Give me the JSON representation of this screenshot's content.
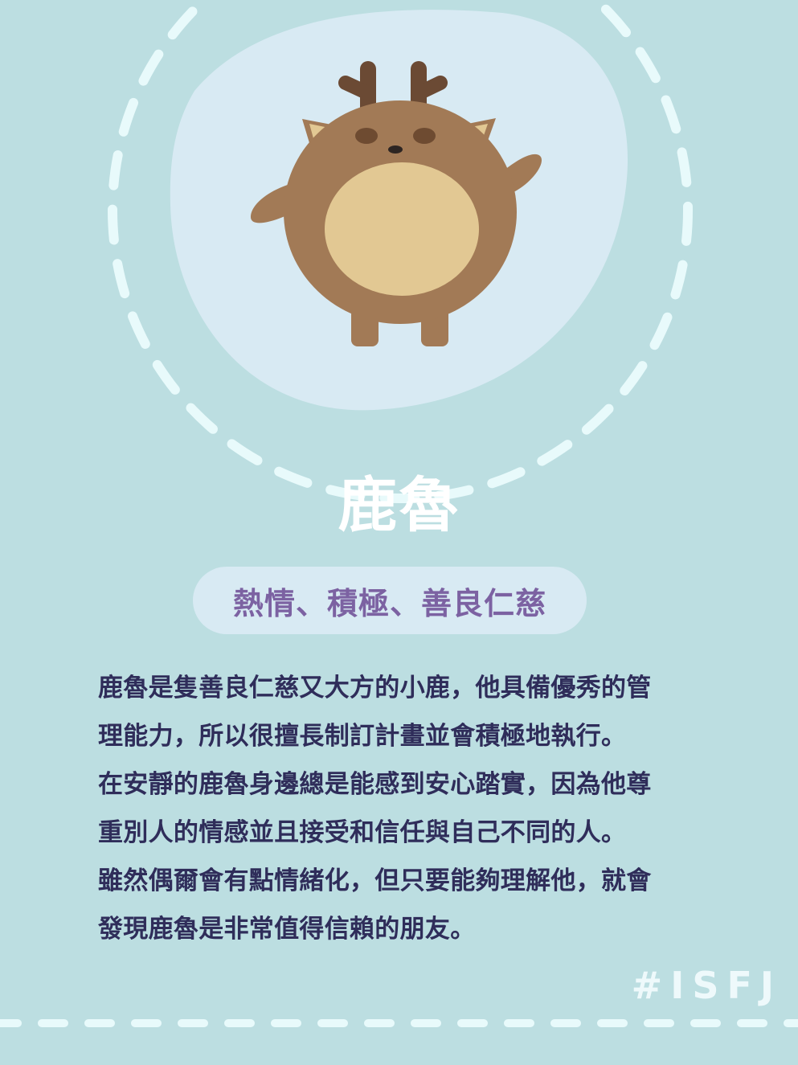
{
  "theme": {
    "background": "#bcdee1",
    "blob": "#d8eaf3",
    "dash": "#e8fafb",
    "deer_body": "#a27a56",
    "deer_belly": "#e2c893",
    "deer_antler": "#6b4a34",
    "deer_eye": "#6e4b31",
    "ear_inner": "#e2c893",
    "title_color": "#ffffff",
    "pill_bg": "#d8eaf3",
    "pill_text": "#7c62a2",
    "desc_text": "#2f2d5a",
    "hashtag_color": "#eef9fb"
  },
  "icons": {
    "mascot": "deer-mascot"
  },
  "character": {
    "name": "鹿魯",
    "traits": "熱情、積極、善良仁慈",
    "description_lines": [
      "鹿魯是隻善良仁慈又大方的小鹿，他具備優秀的管",
      "理能力，所以很擅長制訂計畫並會積極地執行。",
      "在安靜的鹿魯身邊總是能感到安心踏實，因為他尊",
      "重別人的情感並且接受和信任與自己不同的人。",
      "雖然偶爾會有點情緒化，但只要能夠理解他，就會",
      "發現鹿魯是非常值得信賴的朋友。"
    ]
  },
  "tag": "#ISFJ"
}
